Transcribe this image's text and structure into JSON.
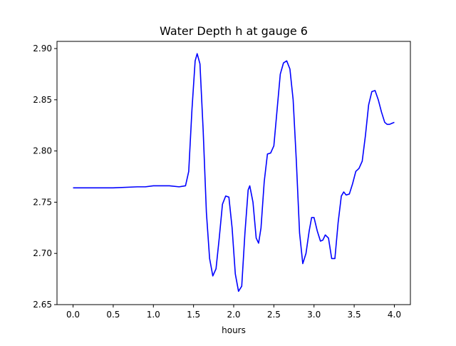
{
  "chart_data": {
    "type": "line",
    "title": "Water Depth h at gauge 6",
    "xlabel": "hours",
    "ylabel": "",
    "xlim": [
      -0.2,
      4.2
    ],
    "ylim": [
      2.65,
      2.907
    ],
    "xticks": [
      0.0,
      0.5,
      1.0,
      1.5,
      2.0,
      2.5,
      3.0,
      3.5,
      4.0
    ],
    "xtick_labels": [
      "0.0",
      "0.5",
      "1.0",
      "1.5",
      "2.0",
      "2.5",
      "3.0",
      "3.5",
      "4.0"
    ],
    "yticks": [
      2.65,
      2.7,
      2.75,
      2.8,
      2.85,
      2.9
    ],
    "ytick_labels": [
      "2.65",
      "2.70",
      "2.75",
      "2.80",
      "2.85",
      "2.90"
    ],
    "grid": false,
    "series": [
      {
        "color": "#0000ff",
        "x": [
          0.0,
          0.2,
          0.5,
          0.8,
          0.9,
          1.0,
          1.2,
          1.32,
          1.4,
          1.44,
          1.48,
          1.52,
          1.545,
          1.58,
          1.62,
          1.66,
          1.7,
          1.74,
          1.78,
          1.82,
          1.86,
          1.9,
          1.94,
          1.98,
          2.02,
          2.06,
          2.1,
          2.14,
          2.18,
          2.2,
          2.24,
          2.28,
          2.31,
          2.34,
          2.38,
          2.42,
          2.46,
          2.5,
          2.54,
          2.58,
          2.62,
          2.66,
          2.7,
          2.74,
          2.78,
          2.82,
          2.86,
          2.9,
          2.94,
          2.97,
          3.0,
          3.04,
          3.08,
          3.11,
          3.14,
          3.18,
          3.22,
          3.26,
          3.3,
          3.34,
          3.37,
          3.4,
          3.44,
          3.48,
          3.52,
          3.56,
          3.6,
          3.64,
          3.68,
          3.72,
          3.76,
          3.8,
          3.84,
          3.88,
          3.91,
          3.94,
          3.97,
          4.0
        ],
        "y": [
          2.764,
          2.764,
          2.764,
          2.765,
          2.765,
          2.766,
          2.766,
          2.765,
          2.766,
          2.78,
          2.84,
          2.888,
          2.895,
          2.885,
          2.82,
          2.74,
          2.695,
          2.678,
          2.685,
          2.715,
          2.748,
          2.756,
          2.755,
          2.725,
          2.68,
          2.663,
          2.668,
          2.72,
          2.762,
          2.766,
          2.75,
          2.715,
          2.71,
          2.725,
          2.77,
          2.797,
          2.798,
          2.805,
          2.84,
          2.875,
          2.886,
          2.888,
          2.88,
          2.85,
          2.79,
          2.72,
          2.69,
          2.7,
          2.722,
          2.735,
          2.735,
          2.722,
          2.712,
          2.713,
          2.718,
          2.715,
          2.695,
          2.695,
          2.73,
          2.756,
          2.76,
          2.757,
          2.758,
          2.768,
          2.78,
          2.783,
          2.79,
          2.815,
          2.845,
          2.858,
          2.859,
          2.85,
          2.838,
          2.828,
          2.826,
          2.826,
          2.827,
          2.828
        ]
      }
    ]
  }
}
